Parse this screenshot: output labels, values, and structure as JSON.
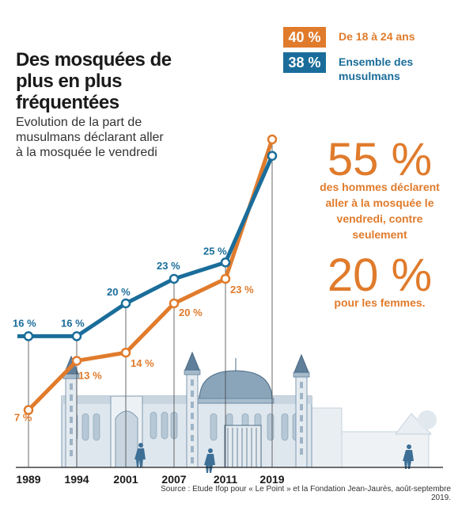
{
  "header": {
    "title": "Des mosquées de plus en plus fréquentées",
    "subtitle": "Evolution de la part de musulmans déclarant aller à la mosquée le vendredi"
  },
  "legend": {
    "young": {
      "badge": "40 %",
      "label": "De 18 à 24 ans"
    },
    "all": {
      "badge": "38 %",
      "label": "Ensemble des musulmans"
    }
  },
  "sidebar": {
    "men_value": "55 %",
    "men_text": "des hommes déclarent aller à la mosquée le vendredi, contre seulement",
    "women_value": "20 %",
    "women_text": "pour les femmes."
  },
  "source": "Source : Etude Ifop pour « Le Point » et la Fondation Jean-Jaurès, août-septembre 2019.",
  "colors": {
    "orange": "#e07b2c",
    "blue": "#1a6d9a",
    "building": "#c5d3df"
  },
  "chart_data": {
    "type": "line",
    "x": [
      "1989",
      "1994",
      "2001",
      "2007",
      "2011",
      "2019"
    ],
    "series": [
      {
        "name": "De 18 à 24 ans",
        "values": [
          7,
          13,
          14,
          20,
          23,
          40
        ],
        "labels": [
          "7 %",
          "13 %",
          "14 %",
          "20 %",
          "23 %",
          "40 %"
        ]
      },
      {
        "name": "Ensemble des musulmans",
        "values": [
          16,
          16,
          20,
          23,
          25,
          38
        ],
        "labels": [
          "16 %",
          "16 %",
          "20 %",
          "23 %",
          "25 %",
          "38 %"
        ]
      }
    ],
    "title": "Des mosquées de plus en plus fréquentées",
    "xlabel": "",
    "ylabel": "",
    "grid": false
  }
}
